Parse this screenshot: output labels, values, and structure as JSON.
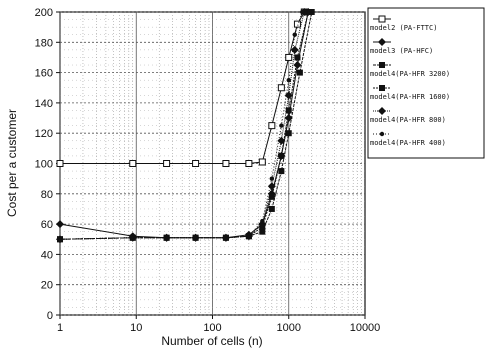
{
  "chart_data": {
    "type": "line",
    "title": "",
    "xlabel": "Number of cells (n)",
    "ylabel": "Cost per a customer",
    "xscale": "log",
    "xlim": [
      1,
      10000
    ],
    "ylim": [
      0,
      200
    ],
    "x_ticks": [
      1,
      10,
      100,
      1000,
      10000
    ],
    "x_tick_labels": [
      "1",
      "10",
      "100",
      "1000",
      "10000"
    ],
    "y_ticks": [
      0,
      20,
      40,
      60,
      80,
      100,
      120,
      140,
      160,
      180,
      200
    ],
    "y_tick_labels": [
      "0",
      "20",
      "40",
      "60",
      "80",
      "100",
      "120",
      "140",
      "160",
      "180",
      "200"
    ],
    "grid": true,
    "legend_position": "right-outside",
    "series": [
      {
        "name": "model2 (PA-FTTC)",
        "marker": "square-open",
        "x": [
          1,
          9,
          25,
          60,
          150,
          300,
          450,
          600,
          800,
          1000,
          1300,
          1600
        ],
        "y": [
          100,
          100,
          100,
          100,
          100,
          100,
          101,
          125,
          150,
          170,
          192,
          200
        ]
      },
      {
        "name": "model3 (PA-HFC)",
        "marker": "diamond",
        "x": [
          1,
          9,
          25,
          60,
          150,
          300,
          450,
          600,
          800,
          1000,
          1300,
          1800
        ],
        "y": [
          60,
          52,
          51,
          51,
          51,
          53,
          60,
          80,
          105,
          130,
          165,
          200
        ]
      },
      {
        "name": "model4(PA-HFR 3200)",
        "marker": "square-filled",
        "x": [
          1,
          9,
          25,
          60,
          150,
          300,
          450,
          600,
          800,
          1000,
          1400,
          2000
        ],
        "y": [
          50,
          51,
          51,
          51,
          51,
          52,
          55,
          70,
          95,
          120,
          160,
          200
        ]
      },
      {
        "name": "model4(PA-HFR 1600)",
        "marker": "square-filled",
        "x": [
          1,
          9,
          25,
          60,
          150,
          300,
          450,
          600,
          800,
          1000,
          1300,
          1800
        ],
        "y": [
          50,
          51,
          51,
          51,
          51,
          52,
          58,
          78,
          105,
          135,
          170,
          200
        ]
      },
      {
        "name": "model4(PA-HFR 800)",
        "marker": "diamond",
        "x": [
          1,
          9,
          25,
          60,
          150,
          300,
          450,
          600,
          800,
          1000,
          1200,
          1600
        ],
        "y": [
          50,
          51,
          51,
          51,
          51,
          52,
          60,
          85,
          115,
          145,
          175,
          200
        ]
      },
      {
        "name": "model4(PA-HFR 400)",
        "marker": "dot",
        "x": [
          1,
          9,
          25,
          60,
          150,
          300,
          450,
          600,
          800,
          1000,
          1200,
          1500
        ],
        "y": [
          50,
          51,
          51,
          51,
          51,
          52,
          62,
          90,
          125,
          155,
          185,
          200
        ]
      }
    ]
  }
}
